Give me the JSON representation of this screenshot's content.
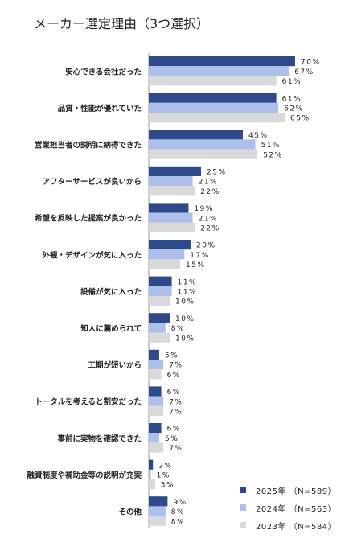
{
  "chart_data": {
    "type": "bar",
    "orientation": "horizontal",
    "title": "メーカー選定理由（3つ選択）",
    "categories": [
      "安心できる会社だった",
      "品質・性能が優れていた",
      "営業担当者の説明に納得できた",
      "アフターサービスが良いから",
      "希望を反映した提案が良かった",
      "外観・デザインが気に入った",
      "設備が気に入った",
      "知人に薦められて",
      "工期が短いから",
      "トータルを考えると割安だった",
      "事前に実物を確認できた",
      "融資制度や補助金等の説明が充実",
      "その他"
    ],
    "series": [
      {
        "name": "2025年 （N=589）",
        "color": "#2e4a8b",
        "values": [
          70,
          61,
          45,
          25,
          19,
          20,
          11,
          10,
          5,
          6,
          6,
          2,
          9
        ]
      },
      {
        "name": "2024年 （N=563）",
        "color": "#adc0eb",
        "values": [
          67,
          62,
          51,
          21,
          21,
          17,
          11,
          8,
          7,
          7,
          5,
          1,
          8
        ]
      },
      {
        "name": "2023年 （N=584）",
        "color": "#d9d9d9",
        "values": [
          61,
          65,
          52,
          22,
          22,
          15,
          10,
          10,
          6,
          7,
          7,
          3,
          8
        ]
      }
    ],
    "value_suffix": "%",
    "xlim": [
      0,
      100
    ],
    "grid": false,
    "legend_position": "bottom-right"
  }
}
